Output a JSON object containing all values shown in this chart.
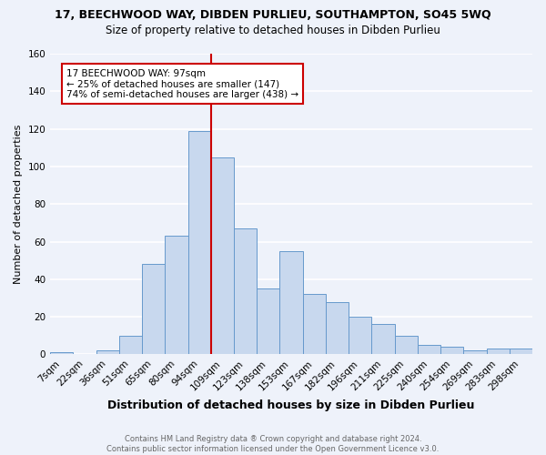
{
  "title": "17, BEECHWOOD WAY, DIBDEN PURLIEU, SOUTHAMPTON, SO45 5WQ",
  "subtitle": "Size of property relative to detached houses in Dibden Purlieu",
  "xlabel": "Distribution of detached houses by size in Dibden Purlieu",
  "ylabel": "Number of detached properties",
  "categories": [
    "7sqm",
    "22sqm",
    "36sqm",
    "51sqm",
    "65sqm",
    "80sqm",
    "94sqm",
    "109sqm",
    "123sqm",
    "138sqm",
    "153sqm",
    "167sqm",
    "182sqm",
    "196sqm",
    "211sqm",
    "225sqm",
    "240sqm",
    "254sqm",
    "269sqm",
    "283sqm",
    "298sqm"
  ],
  "values": [
    1,
    0,
    2,
    10,
    48,
    63,
    119,
    105,
    67,
    35,
    55,
    32,
    28,
    20,
    16,
    10,
    5,
    4,
    2,
    3,
    3
  ],
  "bar_color": "#c8d8ee",
  "bar_edge_color": "#6699cc",
  "background_color": "#eef2fa",
  "grid_color": "#ffffff",
  "vline_x_index": 6.5,
  "vline_color": "#cc0000",
  "annotation_text": "17 BEECHWOOD WAY: 97sqm\n← 25% of detached houses are smaller (147)\n74% of semi-detached houses are larger (438) →",
  "annotation_box_color": "white",
  "annotation_box_edge_color": "#cc0000",
  "ylim": [
    0,
    160
  ],
  "yticks": [
    0,
    20,
    40,
    60,
    80,
    100,
    120,
    140,
    160
  ],
  "footer": "Contains HM Land Registry data ® Crown copyright and database right 2024.\nContains public sector information licensed under the Open Government Licence v3.0.",
  "title_fontsize": 9,
  "subtitle_fontsize": 8.5,
  "ylabel_fontsize": 8,
  "xlabel_fontsize": 9,
  "tick_fontsize": 7.5,
  "footer_fontsize": 6.0,
  "footer_color": "#666666"
}
